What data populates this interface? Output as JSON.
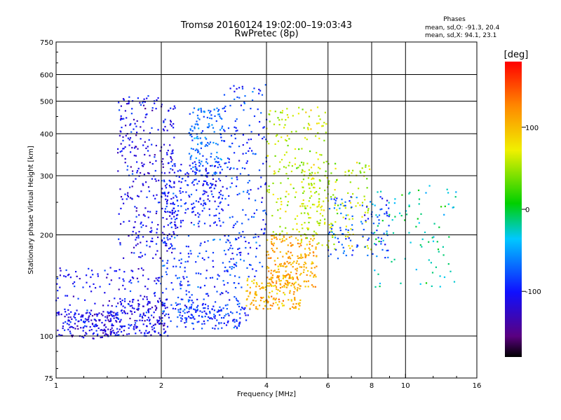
{
  "title_line1": "Tromsø 20160124 19:02:00–19:03:43",
  "title_line2": "RwPretec (8p)",
  "legend": {
    "heading": "Phases",
    "line_o": "mean, sd,O:  -91.3, 20.4",
    "line_x": "mean, sd,X:  94.1, 23.1"
  },
  "colorbar": {
    "label": "[deg]",
    "ticks": [
      {
        "value": 100,
        "label": "100"
      },
      {
        "value": 0,
        "label": "0"
      },
      {
        "value": -100,
        "label": "-100"
      }
    ],
    "range": [
      -180,
      180
    ]
  },
  "chart_data": {
    "type": "scatter",
    "title": "Tromsø 20160124 19:02:00–19:03:43",
    "subtitle": "RwPretec (8p)",
    "xlabel": "Frequency [MHz]",
    "ylabel": "Stationary phase Virtual Height [km]",
    "xscale": "log",
    "yscale": "log",
    "xlim": [
      1,
      16
    ],
    "ylim": [
      75,
      750
    ],
    "x_ticks": [
      1,
      2,
      4,
      6,
      8,
      10,
      16
    ],
    "y_ticks": [
      75,
      100,
      200,
      300,
      400,
      500,
      600,
      750
    ],
    "x_grid": [
      2,
      4,
      6,
      8,
      10
    ],
    "y_grid": [
      100,
      200,
      300,
      400,
      500,
      600
    ],
    "color_scale": "phase (deg), -180 black/purple to 180 red",
    "clusters": [
      {
        "x": [
          1.0,
          1.5
        ],
        "y": [
          98,
          118
        ],
        "phase": -115,
        "count": 140
      },
      {
        "x": [
          1.4,
          2.1
        ],
        "y": [
          100,
          130
        ],
        "phase": -110,
        "count": 160
      },
      {
        "x": [
          1.0,
          2.0
        ],
        "y": [
          105,
          160
        ],
        "phase": -105,
        "count": 180
      },
      {
        "x": [
          1.5,
          2.2
        ],
        "y": [
          170,
          520
        ],
        "phase": -110,
        "count": 330
      },
      {
        "x": [
          2.0,
          3.0
        ],
        "y": [
          210,
          330
        ],
        "phase": -95,
        "count": 220
      },
      {
        "x": [
          2.4,
          3.0
        ],
        "y": [
          300,
          480
        ],
        "phase": -70,
        "count": 140
      },
      {
        "x": [
          2.0,
          3.4
        ],
        "y": [
          110,
          200
        ],
        "phase": -85,
        "count": 200
      },
      {
        "x": [
          2.2,
          3.6
        ],
        "y": [
          105,
          125
        ],
        "phase": -90,
        "count": 120
      },
      {
        "x": [
          3.0,
          4.0
        ],
        "y": [
          150,
          560
        ],
        "phase": -90,
        "count": 200
      },
      {
        "x": [
          3.5,
          5.0
        ],
        "y": [
          120,
          150
        ],
        "phase": 105,
        "count": 160
      },
      {
        "x": [
          4.0,
          5.6
        ],
        "y": [
          140,
          200
        ],
        "phase": 110,
        "count": 220
      },
      {
        "x": [
          4.0,
          6.0
        ],
        "y": [
          200,
          480
        ],
        "phase": 60,
        "count": 200
      },
      {
        "x": [
          5.0,
          8.0
        ],
        "y": [
          180,
          330
        ],
        "phase": 60,
        "count": 160
      },
      {
        "x": [
          6.0,
          9.0
        ],
        "y": [
          170,
          260
        ],
        "phase": -80,
        "count": 110
      },
      {
        "x": [
          8.0,
          14.0
        ],
        "y": [
          140,
          280
        ],
        "phase": -20,
        "count": 90
      }
    ]
  }
}
